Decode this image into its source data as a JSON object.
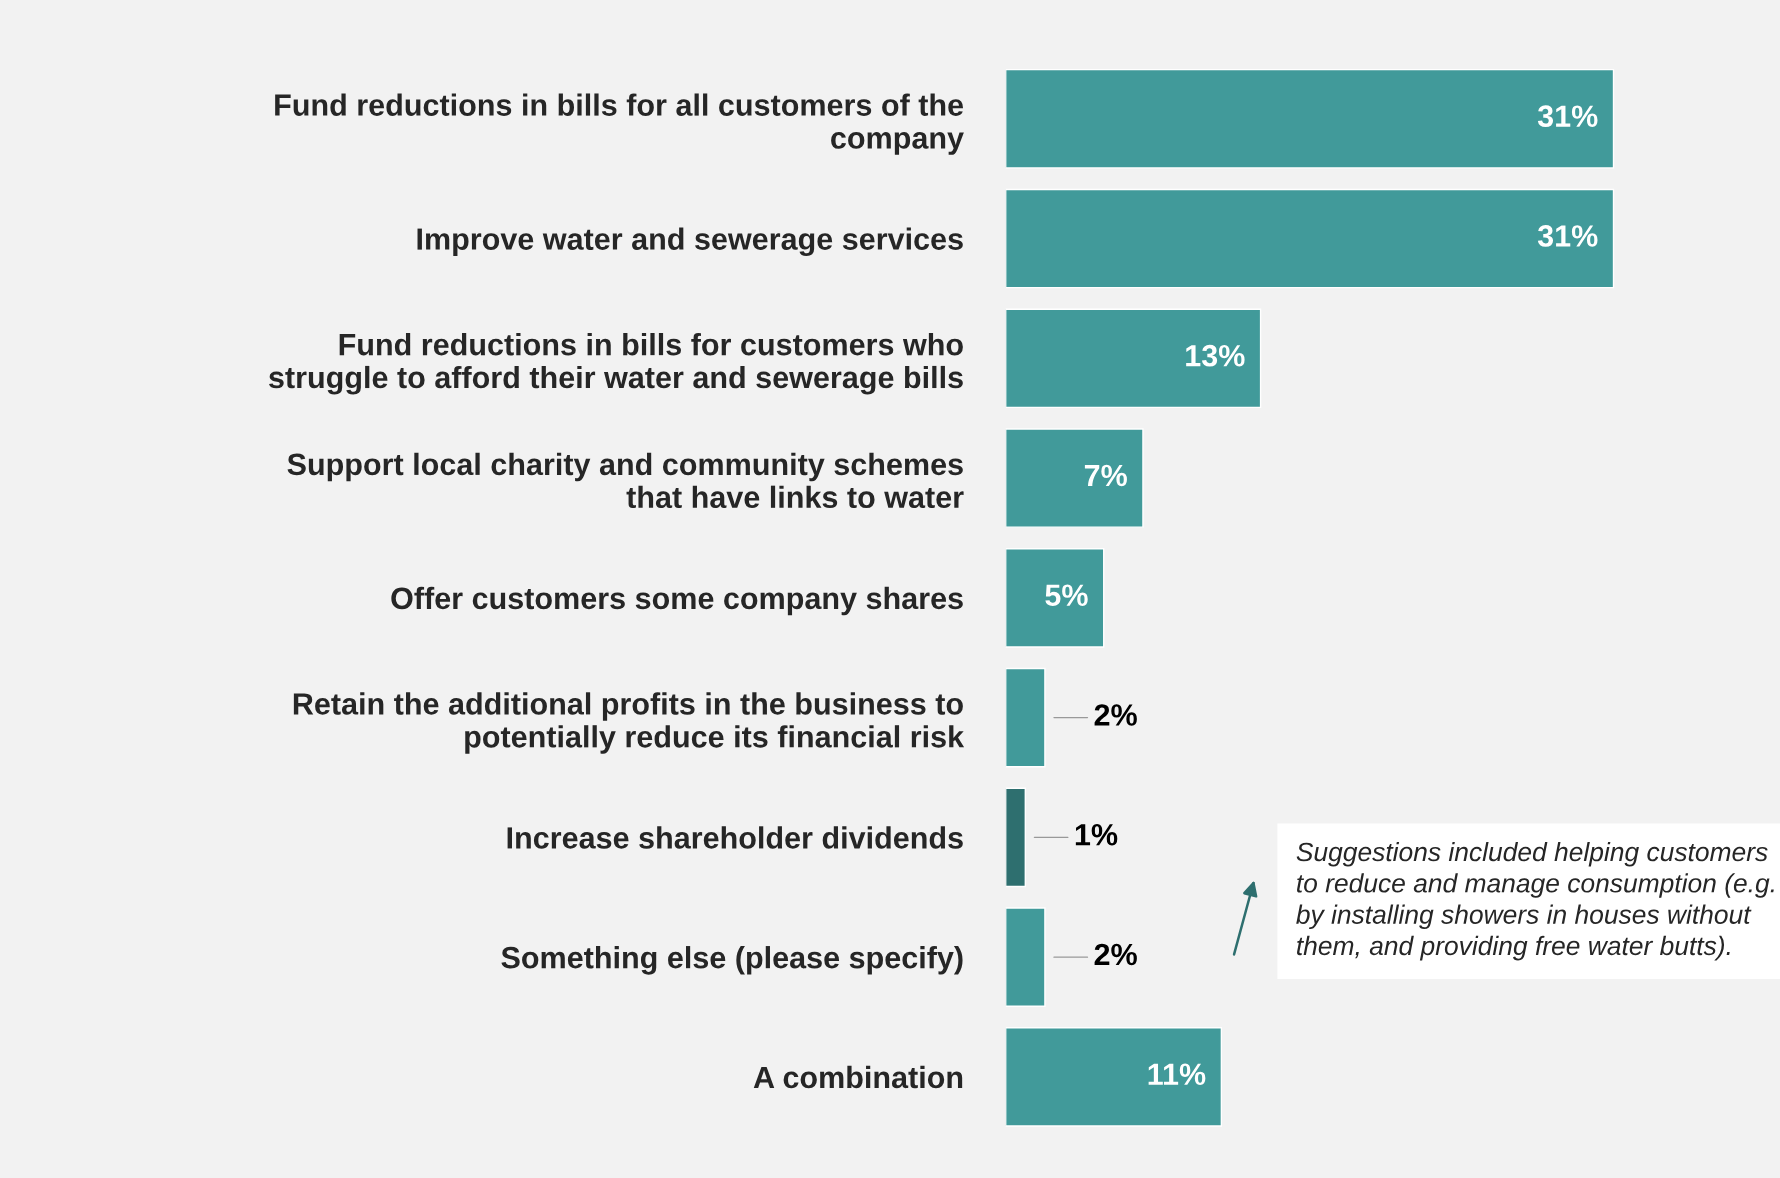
{
  "chart_data": {
    "type": "bar",
    "orientation": "horizontal",
    "categories": [
      "Fund reductions in bills for all customers of the\ncompany",
      "Improve water and sewerage services",
      "Fund reductions in bills for customers who\nstruggle to afford their water and sewerage bills",
      "Support local charity and community schemes\nthat have links to water",
      "Offer customers some company shares",
      "Retain the additional profits in the business to\npotentially reduce its financial risk",
      "Increase shareholder dividends",
      "Something else (please specify)",
      "A combination"
    ],
    "values": [
      31,
      31,
      13,
      7,
      5,
      2,
      1,
      2,
      11
    ],
    "value_labels": [
      "31%",
      "31%",
      "13%",
      "7%",
      "5%",
      "2%",
      "1%",
      "2%",
      "11%"
    ],
    "colors": [
      "#419a9a",
      "#419a9a",
      "#419a9a",
      "#419a9a",
      "#419a9a",
      "#419a9a",
      "#2e6f6f",
      "#419a9a",
      "#419a9a"
    ],
    "annotations": [
      "Suggestions included helping customers to reduce and manage consumption (e.g. by installing showers in houses without them, and providing free water butts)."
    ],
    "grid": false
  }
}
